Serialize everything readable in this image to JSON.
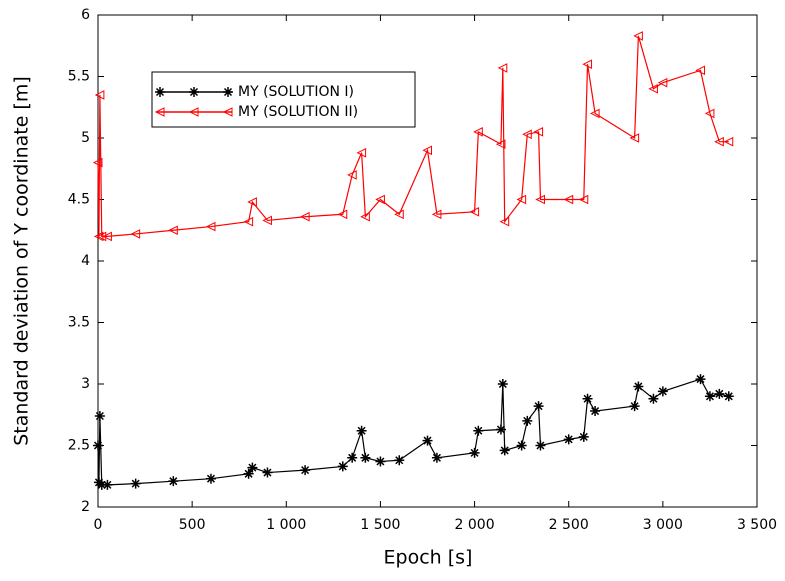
{
  "chart_data": {
    "type": "line",
    "xlabel": "Epoch [s]",
    "ylabel": "Standard deviation of Y coordinate [m]",
    "x": [
      0,
      5,
      10,
      20,
      50,
      200,
      400,
      600,
      800,
      820,
      900,
      1100,
      1300,
      1350,
      1400,
      1420,
      1500,
      1600,
      1750,
      1800,
      2000,
      2020,
      2140,
      2150,
      2160,
      2250,
      2280,
      2340,
      2350,
      2500,
      2580,
      2600,
      2640,
      2850,
      2870,
      2950,
      3000,
      3200,
      3250,
      3300,
      3350
    ],
    "series": [
      {
        "name": "MY (SOLUTION I)",
        "color": "#000000",
        "marker": "star",
        "values": [
          2.5,
          2.2,
          2.74,
          2.18,
          2.18,
          2.19,
          2.21,
          2.23,
          2.27,
          2.32,
          2.28,
          2.3,
          2.33,
          2.4,
          2.62,
          2.4,
          2.37,
          2.38,
          2.54,
          2.4,
          2.44,
          2.62,
          2.63,
          3.0,
          2.46,
          2.5,
          2.7,
          2.82,
          2.5,
          2.55,
          2.57,
          2.88,
          2.78,
          2.82,
          2.98,
          2.88,
          2.94,
          3.04,
          2.9,
          2.92,
          2.9
        ]
      },
      {
        "name": "MY (SOLUTION II)",
        "color": "#ff0000",
        "marker": "triangle-left",
        "values": [
          4.8,
          4.2,
          5.35,
          4.2,
          4.2,
          4.22,
          4.25,
          4.28,
          4.32,
          4.48,
          4.33,
          4.36,
          4.38,
          4.7,
          4.88,
          4.36,
          4.5,
          4.38,
          4.9,
          4.38,
          4.4,
          5.05,
          4.95,
          5.57,
          4.32,
          4.5,
          5.03,
          5.05,
          4.5,
          4.5,
          4.5,
          5.6,
          5.2,
          5.0,
          5.83,
          5.4,
          5.45,
          5.55,
          5.2,
          4.97,
          4.97
        ]
      }
    ],
    "xlim": [
      0,
      3500
    ],
    "xticks": [
      0,
      500,
      {
        "value": 1000,
        "label": "1 000"
      },
      {
        "value": 1500,
        "label": "1 500"
      },
      {
        "value": 2000,
        "label": "2 000"
      },
      {
        "value": 2500,
        "label": "2 500"
      },
      {
        "value": 3000,
        "label": "3 000"
      },
      {
        "value": 3500,
        "label": "3 500"
      }
    ],
    "ylim": [
      2,
      6
    ],
    "yticks": [
      2,
      2.5,
      3,
      3.5,
      4,
      4.5,
      5,
      5.5,
      6
    ],
    "legend": "upper-left"
  }
}
